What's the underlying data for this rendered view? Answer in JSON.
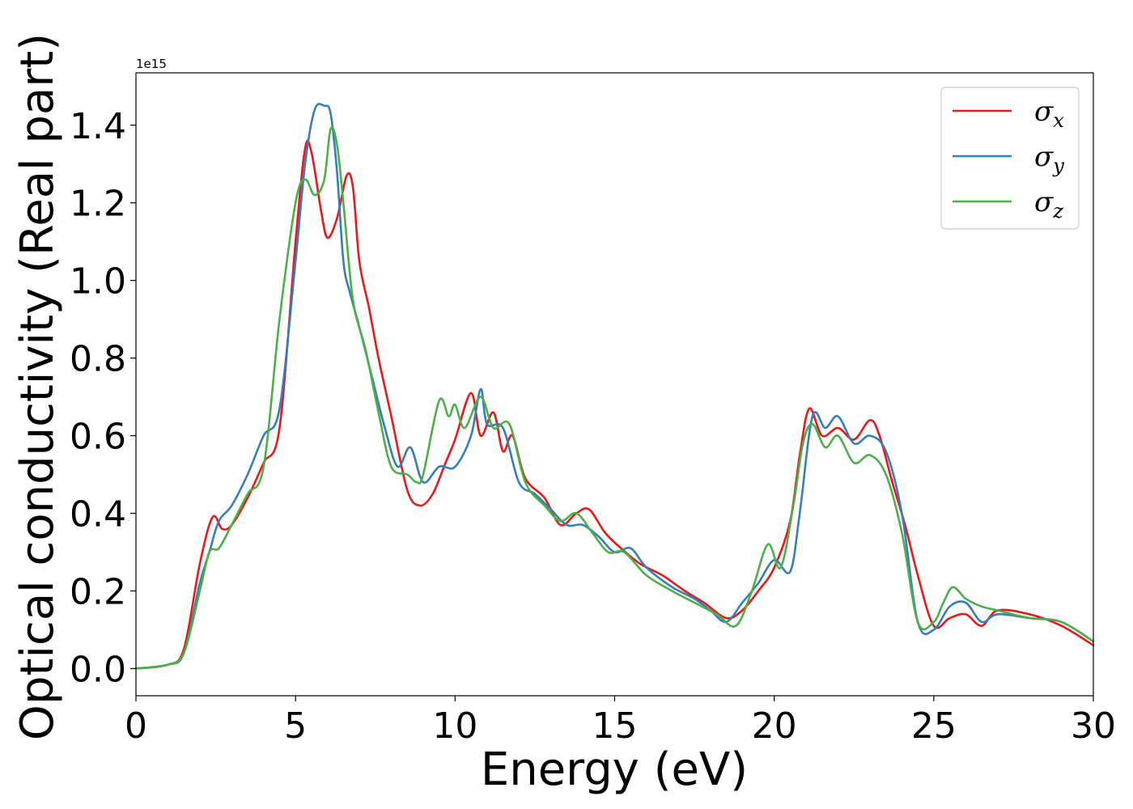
{
  "chart_data": {
    "type": "line",
    "title": "",
    "xlabel": "Energy (eV)",
    "ylabel": "Optical conductivity (Real part)",
    "y_offset_label": "1e15",
    "xlim": [
      0,
      30
    ],
    "ylim": [
      -0.07,
      1.535
    ],
    "x_ticks": [
      0,
      5,
      10,
      15,
      20,
      25,
      30
    ],
    "x_tick_labels": [
      "0",
      "5",
      "10",
      "15",
      "20",
      "25",
      "30"
    ],
    "y_ticks": [
      0.0,
      0.2,
      0.4,
      0.6,
      0.8,
      1.0,
      1.2,
      1.4
    ],
    "y_tick_labels": [
      "0.0",
      "0.2",
      "0.4",
      "0.6",
      "0.8",
      "1.0",
      "1.2",
      "1.4"
    ],
    "grid": false,
    "legend_position": "top-right",
    "series": [
      {
        "name": "σ",
        "subscript": "x",
        "color": "#e41a1c",
        "x": [
          0,
          1,
          1.5,
          2,
          2.4,
          2.7,
          3,
          3.5,
          4,
          4.5,
          5,
          5.3,
          5.5,
          5.8,
          6,
          6.3,
          6.6,
          6.8,
          7,
          7.3,
          7.6,
          8,
          8.5,
          8.9,
          9.3,
          9.7,
          10,
          10.5,
          10.8,
          11.2,
          11.5,
          11.8,
          12.2,
          12.8,
          13.3,
          13.8,
          14.2,
          14.7,
          15.2,
          15.8,
          16.5,
          17.2,
          17.8,
          18.5,
          19,
          19.5,
          20,
          20.5,
          20.8,
          21.1,
          21.5,
          22,
          22.5,
          23,
          23.3,
          23.7,
          24.1,
          24.5,
          25,
          25.5,
          26,
          26.5,
          27,
          28,
          29,
          30
        ],
        "y": [
          0,
          0.01,
          0.05,
          0.27,
          0.39,
          0.36,
          0.37,
          0.44,
          0.53,
          0.62,
          1.1,
          1.34,
          1.33,
          1.18,
          1.11,
          1.16,
          1.27,
          1.24,
          1.05,
          0.93,
          0.8,
          0.65,
          0.46,
          0.42,
          0.45,
          0.53,
          0.59,
          0.71,
          0.6,
          0.66,
          0.56,
          0.6,
          0.49,
          0.44,
          0.37,
          0.4,
          0.41,
          0.35,
          0.31,
          0.27,
          0.24,
          0.2,
          0.17,
          0.13,
          0.15,
          0.2,
          0.26,
          0.38,
          0.55,
          0.67,
          0.6,
          0.62,
          0.59,
          0.64,
          0.6,
          0.48,
          0.37,
          0.24,
          0.11,
          0.13,
          0.14,
          0.11,
          0.15,
          0.14,
          0.11,
          0.06
        ]
      },
      {
        "name": "σ",
        "subscript": "y",
        "color": "#377eb8",
        "x": [
          0,
          1,
          1.5,
          2,
          2.3,
          2.6,
          3,
          3.5,
          4,
          4.5,
          5,
          5.3,
          5.6,
          5.9,
          6.1,
          6.3,
          6.5,
          6.7,
          7,
          7.4,
          7.8,
          8.2,
          8.6,
          9,
          9.5,
          10,
          10.5,
          10.8,
          11,
          11.5,
          12,
          12.5,
          13,
          13.5,
          14,
          14.5,
          15,
          15.5,
          16,
          16.8,
          17.5,
          18,
          18.5,
          19,
          19.5,
          20,
          20.5,
          20.8,
          21.2,
          21.6,
          22,
          22.5,
          23,
          23.5,
          24,
          24.5,
          25,
          25.5,
          26,
          26.5,
          27,
          28,
          29,
          30
        ],
        "y": [
          0,
          0.01,
          0.04,
          0.22,
          0.3,
          0.38,
          0.42,
          0.5,
          0.6,
          0.67,
          1.05,
          1.3,
          1.44,
          1.45,
          1.43,
          1.28,
          1.05,
          0.97,
          0.88,
          0.75,
          0.62,
          0.52,
          0.57,
          0.48,
          0.52,
          0.52,
          0.6,
          0.72,
          0.63,
          0.62,
          0.48,
          0.45,
          0.41,
          0.37,
          0.37,
          0.34,
          0.3,
          0.31,
          0.26,
          0.21,
          0.18,
          0.15,
          0.12,
          0.17,
          0.22,
          0.28,
          0.25,
          0.4,
          0.65,
          0.62,
          0.65,
          0.58,
          0.6,
          0.56,
          0.4,
          0.12,
          0.1,
          0.16,
          0.17,
          0.12,
          0.14,
          0.13,
          0.12,
          0.07
        ]
      },
      {
        "name": "σ",
        "subscript": "z",
        "color": "#4daf4a",
        "x": [
          0,
          1,
          1.5,
          2,
          2.3,
          2.6,
          3,
          3.5,
          4,
          4.5,
          5,
          5.3,
          5.6,
          5.9,
          6.1,
          6.3,
          6.5,
          6.8,
          7.2,
          7.6,
          8,
          8.5,
          8.8,
          9,
          9.5,
          9.8,
          10,
          10.3,
          10.8,
          11.2,
          11.7,
          12.2,
          12.8,
          13.3,
          13.8,
          14.3,
          14.8,
          15.3,
          16,
          16.8,
          17.5,
          18.2,
          18.8,
          19.3,
          19.8,
          20.2,
          20.6,
          20.9,
          21.2,
          21.6,
          22,
          22.5,
          23,
          23.5,
          24,
          24.5,
          25,
          25.3,
          25.6,
          26,
          26.5,
          27,
          28,
          29,
          30
        ],
        "y": [
          0,
          0.01,
          0.04,
          0.2,
          0.3,
          0.31,
          0.37,
          0.45,
          0.52,
          0.9,
          1.2,
          1.26,
          1.22,
          1.26,
          1.39,
          1.35,
          1.2,
          0.95,
          0.82,
          0.66,
          0.52,
          0.5,
          0.48,
          0.5,
          0.69,
          0.65,
          0.68,
          0.62,
          0.7,
          0.62,
          0.63,
          0.48,
          0.42,
          0.38,
          0.4,
          0.35,
          0.3,
          0.3,
          0.24,
          0.2,
          0.17,
          0.14,
          0.11,
          0.2,
          0.32,
          0.26,
          0.42,
          0.58,
          0.63,
          0.57,
          0.6,
          0.53,
          0.55,
          0.5,
          0.35,
          0.12,
          0.12,
          0.17,
          0.21,
          0.18,
          0.16,
          0.15,
          0.13,
          0.12,
          0.07
        ]
      }
    ]
  }
}
